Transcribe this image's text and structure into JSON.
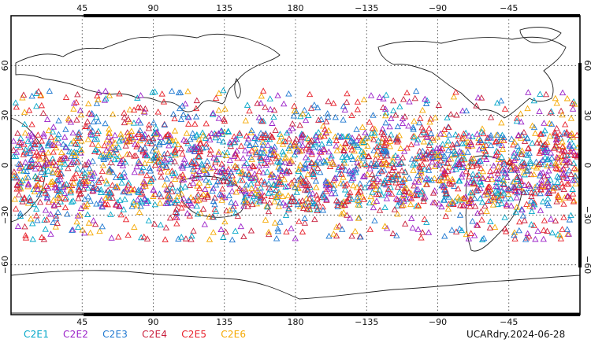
{
  "map": {
    "lon_ticks": [
      "45",
      "90",
      "135",
      "180",
      "−135",
      "−90",
      "−45"
    ],
    "lat_ticks_left": [
      "60",
      "30",
      "0",
      "−30",
      "−60"
    ],
    "lat_ticks_right": [
      "60",
      "30",
      "0",
      "−30",
      "−60"
    ],
    "lon_range": [
      0,
      360
    ],
    "lat_range": [
      -90,
      90
    ],
    "grid": "dotted",
    "center_longitude": 180
  },
  "legend": {
    "items": [
      {
        "label": "C2E1",
        "color": "#00a6c8"
      },
      {
        "label": "C2E2",
        "color": "#9b20c8"
      },
      {
        "label": "C2E3",
        "color": "#1f78d1"
      },
      {
        "label": "C2E4",
        "color": "#c81e3c"
      },
      {
        "label": "C2E5",
        "color": "#e8202a"
      },
      {
        "label": "C2E6",
        "color": "#f5a800"
      }
    ]
  },
  "caption": "UCARdry.2024-06-28",
  "observations": {
    "marker": "open-triangle",
    "lat_band": [
      -45,
      45
    ],
    "dense_core": [
      -25,
      20
    ]
  }
}
